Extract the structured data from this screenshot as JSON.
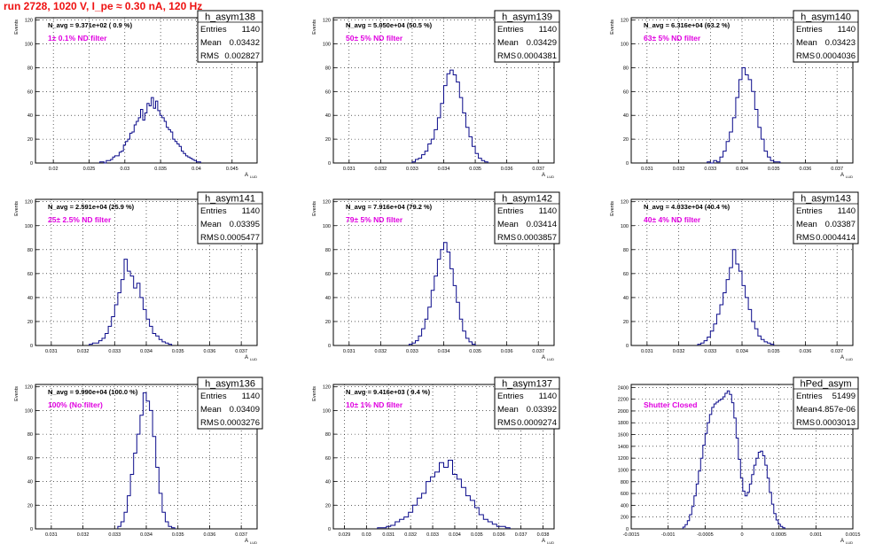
{
  "page": {
    "title": "run 2728,  1020 V, I_pe ≈ 0.30 nA, 120 Hz"
  },
  "colors": {
    "histogram_line": "#0a0a8a",
    "annotation": "#e000e0",
    "title": "#ee1111",
    "frame": "#000000"
  },
  "chart_data": [
    {
      "type": "bar",
      "name": "h_asym138",
      "stats": [
        [
          "Entries",
          "1140"
        ],
        [
          "Mean",
          "0.03432"
        ],
        [
          "RMS",
          "0.002827"
        ]
      ],
      "navg": "N_avg = 9.371e+02  ( 0.9 %)",
      "filter_label": "1± 0.1% ND filter",
      "ylabel": "Events",
      "xlabel": "A",
      "xlim": [
        0.0175,
        0.0485
      ],
      "ylim": [
        0,
        122
      ],
      "xticks": [
        "0.02",
        "0.025",
        "0.03",
        "0.035",
        "0.04",
        "0.045"
      ],
      "xtick_values": [
        0.02,
        0.025,
        0.03,
        0.035,
        0.04,
        0.045
      ],
      "yticks": [
        "0",
        "20",
        "40",
        "60",
        "80",
        "100",
        "120"
      ],
      "yticks_values": [
        0,
        20,
        40,
        60,
        80,
        100,
        120
      ],
      "bin_start": 0.0265,
      "bin_width": 0.0003,
      "values": [
        1,
        1,
        0,
        2,
        2,
        3,
        5,
        6,
        6,
        9,
        10,
        15,
        18,
        20,
        25,
        26,
        32,
        35,
        38,
        45,
        36,
        42,
        50,
        48,
        55,
        46,
        52,
        44,
        40,
        38,
        35,
        30,
        28,
        26,
        20,
        18,
        16,
        14,
        10,
        8,
        6,
        5,
        4,
        3,
        2,
        1,
        1
      ]
    },
    {
      "type": "bar",
      "name": "h_asym139",
      "stats": [
        [
          "Entries",
          "1140"
        ],
        [
          "Mean",
          "0.03429"
        ],
        [
          "RMS",
          "0.0004381"
        ]
      ],
      "navg": "N_avg = 5.050e+04 (50.5 %)",
      "filter_label": "50± 5% ND filter",
      "ylabel": "Events",
      "xlabel": "A",
      "xlim": [
        0.0305,
        0.0375
      ],
      "ylim": [
        0,
        122
      ],
      "xticks": [
        "0.031",
        "0.032",
        "0.033",
        "0.034",
        "0.035",
        "0.036",
        "0.037"
      ],
      "xtick_values": [
        0.031,
        0.032,
        0.033,
        0.034,
        0.035,
        0.036,
        0.037
      ],
      "yticks": [
        "0",
        "20",
        "40",
        "60",
        "80",
        "100",
        "120"
      ],
      "yticks_values": [
        0,
        20,
        40,
        60,
        80,
        100,
        120
      ],
      "bin_start": 0.033,
      "bin_width": 0.0001,
      "values": [
        1,
        3,
        4,
        7,
        10,
        16,
        20,
        28,
        38,
        50,
        65,
        75,
        78,
        74,
        68,
        55,
        42,
        30,
        22,
        14,
        8,
        4,
        2,
        1
      ]
    },
    {
      "type": "bar",
      "name": "h_asym140",
      "stats": [
        [
          "Entries",
          "1140"
        ],
        [
          "Mean",
          "0.03423"
        ],
        [
          "RMS",
          "0.0004036"
        ]
      ],
      "navg": "N_avg = 6.316e+04 (63.2 %)",
      "filter_label": "63± 5% ND filter",
      "ylabel": "Events",
      "xlabel": "A",
      "xlim": [
        0.0305,
        0.0375
      ],
      "ylim": [
        0,
        122
      ],
      "xticks": [
        "0.031",
        "0.032",
        "0.033",
        "0.034",
        "0.035",
        "0.036",
        "0.037"
      ],
      "xtick_values": [
        0.031,
        0.032,
        0.033,
        0.034,
        0.035,
        0.036,
        0.037
      ],
      "yticks": [
        "0",
        "20",
        "40",
        "60",
        "80",
        "100",
        "120"
      ],
      "yticks_values": [
        0,
        20,
        40,
        60,
        80,
        100,
        120
      ],
      "bin_start": 0.0329,
      "bin_width": 0.0001,
      "values": [
        1,
        0,
        2,
        1,
        5,
        10,
        18,
        26,
        38,
        55,
        70,
        80,
        74,
        70,
        60,
        45,
        30,
        20,
        10,
        5,
        2,
        1,
        1
      ]
    },
    {
      "type": "bar",
      "name": "h_asym141",
      "stats": [
        [
          "Entries",
          "1140"
        ],
        [
          "Mean",
          "0.03395"
        ],
        [
          "RMS",
          "0.0005477"
        ]
      ],
      "navg": "N_avg = 2.591e+04 (25.9 %)",
      "filter_label": "25± 2.5% ND filter",
      "ylabel": "Events",
      "xlabel": "A",
      "xlim": [
        0.0305,
        0.0375
      ],
      "ylim": [
        0,
        122
      ],
      "xticks": [
        "0.031",
        "0.032",
        "0.033",
        "0.034",
        "0.035",
        "0.036",
        "0.037"
      ],
      "xtick_values": [
        0.031,
        0.032,
        0.033,
        0.034,
        0.035,
        0.036,
        0.037
      ],
      "yticks": [
        "0",
        "20",
        "40",
        "60",
        "80",
        "100",
        "120"
      ],
      "yticks_values": [
        0,
        20,
        40,
        60,
        80,
        100,
        120
      ],
      "bin_start": 0.0322,
      "bin_width": 0.0001,
      "values": [
        1,
        2,
        2,
        4,
        6,
        10,
        16,
        24,
        34,
        44,
        55,
        72,
        62,
        58,
        48,
        52,
        40,
        30,
        22,
        16,
        10,
        8,
        5,
        3,
        2,
        1
      ]
    },
    {
      "type": "bar",
      "name": "h_asym142",
      "stats": [
        [
          "Entries",
          "1140"
        ],
        [
          "Mean",
          "0.03414"
        ],
        [
          "RMS",
          "0.0003857"
        ]
      ],
      "navg": "N_avg = 7.916e+04 (79.2 %)",
      "filter_label": "79± 5% ND filter",
      "ylabel": "Events",
      "xlabel": "A",
      "xlim": [
        0.0305,
        0.0375
      ],
      "ylim": [
        0,
        122
      ],
      "xticks": [
        "0.031",
        "0.032",
        "0.033",
        "0.034",
        "0.035",
        "0.036",
        "0.037"
      ],
      "xtick_values": [
        0.031,
        0.032,
        0.033,
        0.034,
        0.035,
        0.036,
        0.037
      ],
      "yticks": [
        "0",
        "20",
        "40",
        "60",
        "80",
        "100",
        "120"
      ],
      "yticks_values": [
        0,
        20,
        40,
        60,
        80,
        100,
        120
      ],
      "bin_start": 0.0329,
      "bin_width": 0.0001,
      "values": [
        1,
        2,
        4,
        8,
        14,
        22,
        32,
        46,
        58,
        72,
        80,
        86,
        78,
        64,
        50,
        36,
        22,
        12,
        6,
        3,
        1
      ]
    },
    {
      "type": "bar",
      "name": "h_asym143",
      "stats": [
        [
          "Entries",
          "1140"
        ],
        [
          "Mean",
          "0.03387"
        ],
        [
          "RMS",
          "0.0004414"
        ]
      ],
      "navg": "N_avg = 4.033e+04 (40.4 %)",
      "filter_label": "40± 4% ND filter",
      "ylabel": "Events",
      "xlabel": "A",
      "xlim": [
        0.0305,
        0.0375
      ],
      "ylim": [
        0,
        122
      ],
      "xticks": [
        "0.031",
        "0.032",
        "0.033",
        "0.034",
        "0.035",
        "0.036",
        "0.037"
      ],
      "xtick_values": [
        0.031,
        0.032,
        0.033,
        0.034,
        0.035,
        0.036,
        0.037
      ],
      "yticks": [
        "0",
        "20",
        "40",
        "60",
        "80",
        "100",
        "120"
      ],
      "yticks_values": [
        0,
        20,
        40,
        60,
        80,
        100,
        120
      ],
      "bin_start": 0.0326,
      "bin_width": 0.0001,
      "values": [
        1,
        2,
        4,
        7,
        12,
        18,
        26,
        34,
        44,
        55,
        65,
        80,
        68,
        62,
        50,
        40,
        30,
        20,
        14,
        8,
        5,
        3,
        2,
        1
      ]
    },
    {
      "type": "bar",
      "name": "h_asym136",
      "stats": [
        [
          "Entries",
          "1140"
        ],
        [
          "Mean",
          "0.03409"
        ],
        [
          "RMS",
          "0.0003276"
        ]
      ],
      "navg": "N_avg = 9.990e+04 (100.0 %)",
      "filter_label": "100% (No filter)",
      "ylabel": "Events",
      "xlabel": "A",
      "xlim": [
        0.0305,
        0.0375
      ],
      "ylim": [
        0,
        122
      ],
      "xticks": [
        "0.031",
        "0.032",
        "0.033",
        "0.034",
        "0.035",
        "0.036",
        "0.037"
      ],
      "xtick_values": [
        0.031,
        0.032,
        0.033,
        0.034,
        0.035,
        0.036,
        0.037
      ],
      "yticks": [
        "0",
        "20",
        "40",
        "60",
        "80",
        "100",
        "120"
      ],
      "yticks_values": [
        0,
        20,
        40,
        60,
        80,
        100,
        120
      ],
      "bin_start": 0.0331,
      "bin_width": 0.0001,
      "values": [
        2,
        6,
        14,
        28,
        46,
        64,
        80,
        96,
        115,
        108,
        100,
        78,
        52,
        30,
        14,
        6,
        2,
        1
      ]
    },
    {
      "type": "bar",
      "name": "h_asym137",
      "stats": [
        [
          "Entries",
          "1140"
        ],
        [
          "Mean",
          "0.03392"
        ],
        [
          "RMS",
          "0.0009274"
        ]
      ],
      "navg": "N_avg = 9.416e+03 ( 9.4 %)",
      "filter_label": "10± 1% ND filter",
      "ylabel": "Events",
      "xlabel": "A",
      "xlim": [
        0.0285,
        0.0385
      ],
      "ylim": [
        0,
        122
      ],
      "xticks": [
        "0.029",
        "0.03",
        "0.031",
        "0.032",
        "0.033",
        "0.034",
        "0.035",
        "0.036",
        "0.037",
        "0.038"
      ],
      "xtick_values": [
        0.029,
        0.03,
        0.031,
        0.032,
        0.033,
        0.034,
        0.035,
        0.036,
        0.037,
        0.038
      ],
      "yticks": [
        "0",
        "20",
        "40",
        "60",
        "80",
        "100",
        "120"
      ],
      "yticks_values": [
        0,
        20,
        40,
        60,
        80,
        100,
        120
      ],
      "bin_start": 0.0305,
      "bin_width": 0.0002,
      "values": [
        1,
        1,
        2,
        3,
        6,
        8,
        10,
        14,
        20,
        26,
        30,
        40,
        44,
        48,
        56,
        52,
        58,
        46,
        42,
        35,
        28,
        24,
        18,
        12,
        8,
        6,
        4,
        2,
        2,
        1
      ]
    },
    {
      "type": "bar",
      "name": "hPed_asym",
      "stats": [
        [
          "Entries",
          "51499"
        ],
        [
          "Mean",
          "-4.857e-06"
        ],
        [
          "RMS",
          "0.0003013"
        ]
      ],
      "navg": "",
      "filter_label": "Shutter Closed",
      "ylabel": "",
      "xlabel": "A",
      "xlim": [
        -0.0015,
        0.0015
      ],
      "ylim": [
        0,
        2450
      ],
      "xticks": [
        "-0.0015",
        "-0.001",
        "-0.0005",
        "0",
        "0.0005",
        "0.001",
        "0.0015"
      ],
      "xtick_values": [
        -0.0015,
        -0.001,
        -0.0005,
        0,
        0.0005,
        0.001,
        0.0015
      ],
      "yticks": [
        "0",
        "200",
        "400",
        "600",
        "800",
        "1000",
        "1200",
        "1400",
        "1600",
        "1800",
        "2000",
        "2200",
        "2400"
      ],
      "yticks_values": [
        0,
        200,
        400,
        600,
        800,
        1000,
        1200,
        1400,
        1600,
        1800,
        2000,
        2200,
        2400
      ],
      "bin_start": -0.0008,
      "bin_width": 3e-05,
      "values": [
        30,
        70,
        140,
        240,
        380,
        560,
        760,
        980,
        1200,
        1420,
        1620,
        1800,
        1940,
        2060,
        2120,
        2150,
        2180,
        2200,
        2240,
        2300,
        2340,
        2280,
        2140,
        1880,
        1540,
        1180,
        860,
        640,
        560,
        620,
        760,
        920,
        1080,
        1200,
        1300,
        1320,
        1240,
        1080,
        860,
        620,
        420,
        260,
        150,
        80,
        40,
        20
      ]
    }
  ]
}
